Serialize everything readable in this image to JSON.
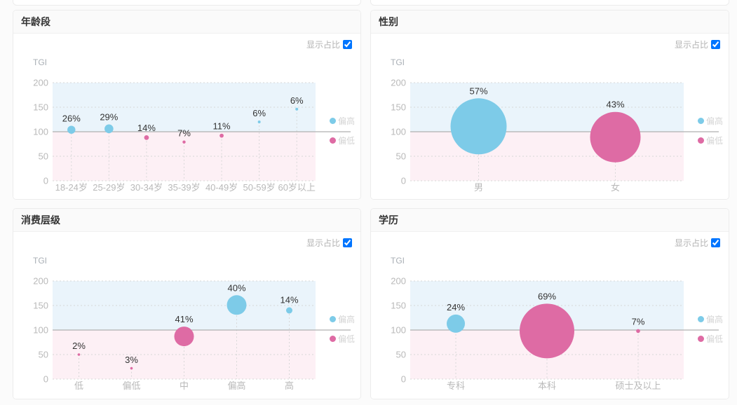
{
  "page": {
    "background": "#fbfbfb"
  },
  "palette": {
    "high_color": "#7dcbe8",
    "low_color": "#de6ba4",
    "high_band": "#eaf4fb",
    "low_band": "#fdf0f5",
    "baseline_color": "#b0b0b0",
    "grid_color": "#d7d7d7",
    "axis_text": "#b9b9b9",
    "axis_title_text": "#a9afb5",
    "value_text": "#333333",
    "legend_text": "#d4d4d4"
  },
  "controls": {
    "show_ratio_label": "显示占比",
    "checked": true
  },
  "legend": {
    "high_label": "偏高",
    "low_label": "偏低"
  },
  "y_axis": {
    "title": "TGI",
    "ticks": [
      0,
      50,
      100,
      150,
      200
    ],
    "min": 0,
    "max": 200,
    "baseline": 100
  },
  "chart_data": [
    {
      "type": "bubble",
      "title": "年龄段",
      "ylabel": "TGI",
      "ylim": [
        0,
        200
      ],
      "baseline": 100,
      "grid": "dotted",
      "legend_position": "right",
      "categories": [
        "18-24岁",
        "25-29岁",
        "30-34岁",
        "35-39岁",
        "40-49岁",
        "50-59岁",
        "60岁以上"
      ],
      "share_pct": [
        26,
        29,
        14,
        7,
        11,
        6,
        6
      ],
      "tgi": [
        104,
        106,
        88,
        79,
        92,
        120,
        146
      ],
      "bubble_r": [
        5.7,
        6.3,
        3.4,
        2.2,
        2.9,
        2.0,
        2.0
      ]
    },
    {
      "type": "bubble",
      "title": "性别",
      "ylabel": "TGI",
      "ylim": [
        0,
        200
      ],
      "baseline": 100,
      "grid": "dotted",
      "legend_position": "right",
      "categories": [
        "男",
        "女"
      ],
      "share_pct": [
        57,
        43
      ],
      "tgi": [
        111,
        89
      ],
      "bubble_r": [
        40,
        36
      ]
    },
    {
      "type": "bubble",
      "title": "消费层级",
      "ylabel": "TGI",
      "ylim": [
        0,
        200
      ],
      "baseline": 100,
      "grid": "dotted",
      "legend_position": "right",
      "categories": [
        "低",
        "偏低",
        "中",
        "偏高",
        "高"
      ],
      "share_pct": [
        2,
        3,
        41,
        40,
        14
      ],
      "tgi": [
        50,
        22,
        87,
        151,
        140
      ],
      "bubble_r": [
        1.8,
        1.8,
        14,
        14,
        4.5
      ]
    },
    {
      "type": "bubble",
      "title": "学历",
      "ylabel": "TGI",
      "ylim": [
        0,
        200
      ],
      "baseline": 100,
      "grid": "dotted",
      "legend_position": "right",
      "categories": [
        "专科",
        "本科",
        "硕士及以上"
      ],
      "share_pct": [
        24,
        69,
        7
      ],
      "tgi": [
        113,
        98,
        98
      ],
      "bubble_r": [
        13,
        39,
        2.8
      ]
    }
  ]
}
